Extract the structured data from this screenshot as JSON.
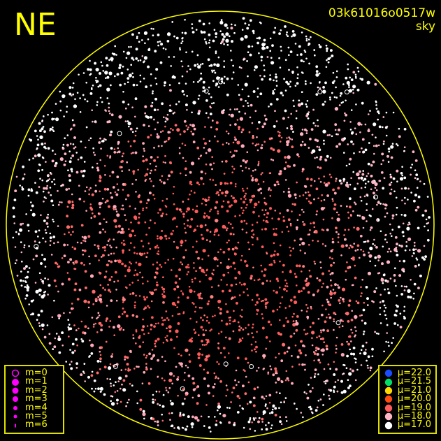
{
  "direction_label": "NE",
  "frame_id": "03k61016o0517w",
  "image_type": "sky",
  "colors": {
    "horizon_circle": "#ffff00",
    "text": "#ffff00",
    "magnitude_marker": "#ff00ff"
  },
  "magnitude_legend": [
    {
      "label": "m=0",
      "marker": "open-circle"
    },
    {
      "label": "m=1",
      "marker": "dot"
    },
    {
      "label": "m=2",
      "marker": "dot"
    },
    {
      "label": "m=3",
      "marker": "dot"
    },
    {
      "label": "m=4",
      "marker": "dot"
    },
    {
      "label": "m=5",
      "marker": "dot"
    },
    {
      "label": "m=6",
      "marker": "dot"
    }
  ],
  "sky_brightness_legend": [
    {
      "label": "μ=22.0",
      "color": "#1a4cff"
    },
    {
      "label": "μ=21.5",
      "color": "#00dd66"
    },
    {
      "label": "μ=21.0",
      "color": "#ffd700"
    },
    {
      "label": "μ=20.0",
      "color": "#ff4a10"
    },
    {
      "label": "μ=19.0",
      "color": "#ff5a5a"
    },
    {
      "label": "μ=18.0",
      "color": "#ffb6c4"
    },
    {
      "label": "μ=17.0",
      "color": "#ffffff"
    }
  ]
}
